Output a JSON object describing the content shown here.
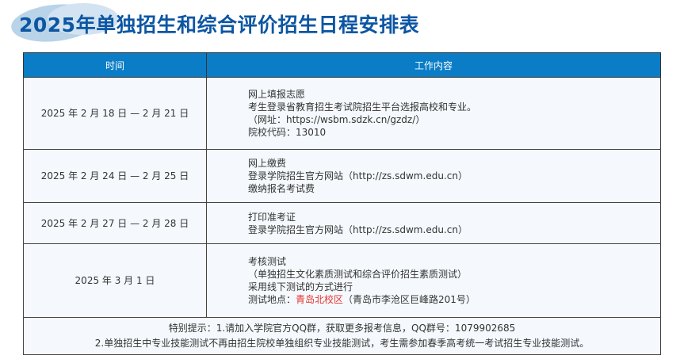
{
  "title": "2025年单独招生和综合评价招生日程安排表",
  "headers": {
    "time": "时间",
    "content": "工作内容"
  },
  "rows": [
    {
      "time": "2025 年 2 月 18 日 — 2 月 21 日",
      "lines": [
        "网上填报志愿",
        "考生登录省教育招生考试院招生平台选报高校和专业。",
        "（网址：https://wsbm.sdzk.cn/gzdz/）",
        "院校代码：13010"
      ]
    },
    {
      "time": "2025 年 2 月 24 日 — 2 月 25 日",
      "lines": [
        "网上缴费",
        "登录学院招生官方网站（http://zs.sdwm.edu.cn）",
        "缴纳报名考试费"
      ]
    },
    {
      "time": "2025 年 2 月 27 日 — 2 月 28 日",
      "lines": [
        "打印准考证",
        "登录学院招生官方网站（http://zs.sdwm.edu.cn）"
      ]
    },
    {
      "time": "2025 年 3 月 1 日",
      "lines": [
        "考核测试",
        "（单独招生文化素质测试和综合评价招生素质测试）",
        "采用线下测试的方式进行"
      ],
      "location_label": "测试地点：",
      "location_highlight": "青岛北校区",
      "location_detail": "（青岛市李沧区巨峰路201号）"
    }
  ],
  "notes": [
    "特别提示：1.请加入学院官方QQ群，获取更多报考信息，QQ群号：1079902685",
    "2.单独招生中专业技能测试不再由招生院校单独组织专业技能测试，考生需参加春季高考统一考试招生专业技能测试。"
  ],
  "colors": {
    "title": "#0c56a3",
    "header": "#0a7dc6",
    "highlight": "#e8312f"
  }
}
